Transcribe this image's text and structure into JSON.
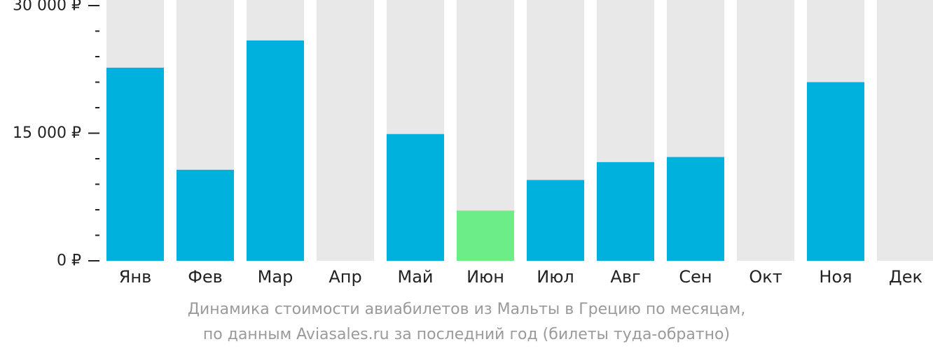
{
  "chart_data": {
    "type": "bar",
    "categories": [
      "Янв",
      "Фев",
      "Мар",
      "Апр",
      "Май",
      "Июн",
      "Июл",
      "Авг",
      "Сен",
      "Окт",
      "Ноя",
      "Дек"
    ],
    "values": [
      22700,
      10700,
      25900,
      null,
      14900,
      5900,
      9500,
      11600,
      12200,
      null,
      21000,
      null
    ],
    "highlight_index": 5,
    "ylim": [
      0,
      30000
    ],
    "yticks": [
      {
        "value": 0,
        "label": "0 ₽"
      },
      {
        "value": 15000,
        "label": "15 000 ₽"
      },
      {
        "value": 30000,
        "label": "30 000 ₽"
      }
    ],
    "minor_tick_step": 3000,
    "colors": {
      "bar": "#00b1de",
      "highlight": "#6ced87",
      "track": "#e8e8e8",
      "axis": "#222222"
    },
    "grid": false,
    "caption_line1": "Динамика стоимости авиабилетов из Мальты в Грецию по месяцам,",
    "caption_line2": "по данным Aviasales.ru за последний год (билеты туда-обратно)"
  }
}
